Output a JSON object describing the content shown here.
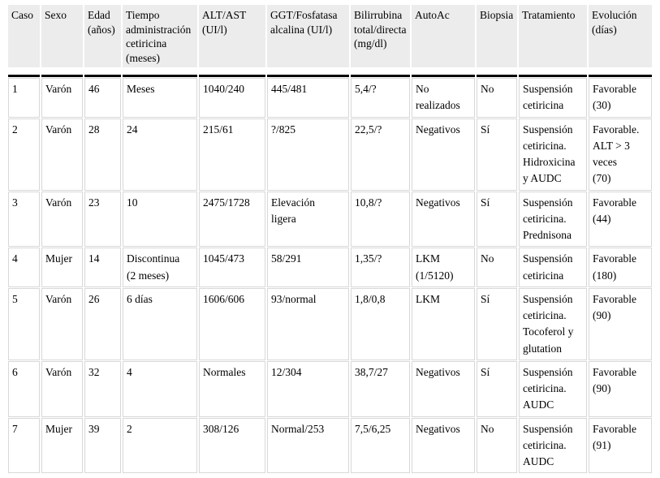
{
  "colors": {
    "header_bg": "#ececec",
    "header_rule": "#000000",
    "cell_border": "#d8d8d8",
    "text": "#000000",
    "page_bg": "#ffffff"
  },
  "table": {
    "columns": [
      {
        "id": "caso",
        "label": "Caso"
      },
      {
        "id": "sexo",
        "label": "Sexo"
      },
      {
        "id": "edad",
        "label": "Edad\n(años)"
      },
      {
        "id": "tiempo",
        "label": "Tiempo\nadministración\ncetiricina\n(meses)"
      },
      {
        "id": "alt-ast",
        "label": "ALT/AST\n(UI/l)"
      },
      {
        "id": "ggt-fosfatasa",
        "label": "GGT/Fosfatasa\nalcalina (UI/l)"
      },
      {
        "id": "bilirrubina",
        "label": "Bilirrubina\ntotal/directa\n(mg/dl)"
      },
      {
        "id": "autoac",
        "label": "AutoAc"
      },
      {
        "id": "biopsia",
        "label": "Biopsia"
      },
      {
        "id": "tratamiento",
        "label": "Tratamiento"
      },
      {
        "id": "evolucion",
        "label": "Evolución\n(días)"
      }
    ],
    "rows": [
      {
        "cells": [
          "1",
          "Varón",
          "46",
          "Meses",
          "1040/240",
          "445/481",
          "5,4/?",
          "No\nrealizados",
          "No",
          "Suspensión\ncetiricina",
          "Favorable\n(30)"
        ]
      },
      {
        "cells": [
          "2",
          "Varón",
          "28",
          "24",
          "215/61",
          "?/825",
          "22,5/?",
          "Negativos",
          "Sí",
          "Suspensión\ncetiricina.\nHidroxicina\ny AUDC",
          "Favorable.\nALT > 3\nveces\n(70)"
        ]
      },
      {
        "cells": [
          "3",
          "Varón",
          "23",
          "10",
          "2475/1728",
          "Elevación\nligera",
          "10,8/?",
          "Negativos",
          "Sí",
          "Suspensión\ncetiricina.\nPrednisona",
          "Favorable\n(44)"
        ]
      },
      {
        "cells": [
          "4",
          "Mujer",
          "14",
          "Discontinua\n(2 meses)",
          "1045/473",
          "58/291",
          "1,35/?",
          "LKM\n(1/5120)",
          "No",
          "Suspensión\ncetiricina",
          "Favorable\n(180)"
        ]
      },
      {
        "cells": [
          "5",
          "Varón",
          "26",
          "6 días",
          "1606/606",
          "93/normal",
          "1,8/0,8",
          "LKM",
          "Sí",
          "Suspensión\ncetiricina.\nTocoferol y\nglutation",
          "Favorable\n(90)"
        ]
      },
      {
        "cells": [
          "6",
          "Varón",
          "32",
          "4",
          "Normales",
          "12/304",
          "38,7/27",
          "Negativos",
          "Sí",
          "Suspensión\ncetiricina.\nAUDC",
          "Favorable\n(90)"
        ]
      },
      {
        "cells": [
          "7",
          "Mujer",
          "39",
          "2",
          "308/126",
          "Normal/253",
          "7,5/6,25",
          "Negativos",
          "No",
          "Suspensión\ncetiricina.\nAUDC",
          "Favorable\n(91)"
        ]
      }
    ]
  }
}
